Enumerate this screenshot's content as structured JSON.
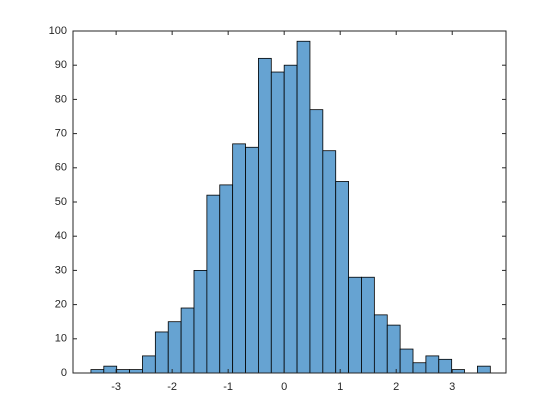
{
  "chart_data": {
    "type": "histogram",
    "bins": [
      -3.45,
      -3.22,
      -2.99,
      -2.76,
      -2.53,
      -2.3,
      -2.07,
      -1.84,
      -1.61,
      -1.38,
      -1.15,
      -0.92,
      -0.69,
      -0.46,
      -0.23,
      0,
      0.23,
      0.46,
      0.69,
      0.92,
      1.15,
      1.38,
      1.61,
      1.84,
      2.07,
      2.3,
      2.53,
      2.76,
      2.99,
      3.22,
      3.45,
      3.68
    ],
    "values": [
      1,
      2,
      1,
      1,
      5,
      12,
      15,
      19,
      30,
      52,
      55,
      67,
      66,
      92,
      88,
      90,
      97,
      77,
      65,
      56,
      28,
      28,
      17,
      14,
      7,
      3,
      5,
      4,
      1,
      0,
      2
    ],
    "color": "#66a3d2",
    "xlim": [
      -3.77,
      3.96
    ],
    "xticks": [
      -3,
      -2,
      -1,
      0,
      1,
      2,
      3
    ],
    "ylim": [
      0,
      100
    ],
    "yticks": [
      0,
      10,
      20,
      30,
      40,
      50,
      60,
      70,
      80,
      90,
      100
    ],
    "grid": false
  }
}
